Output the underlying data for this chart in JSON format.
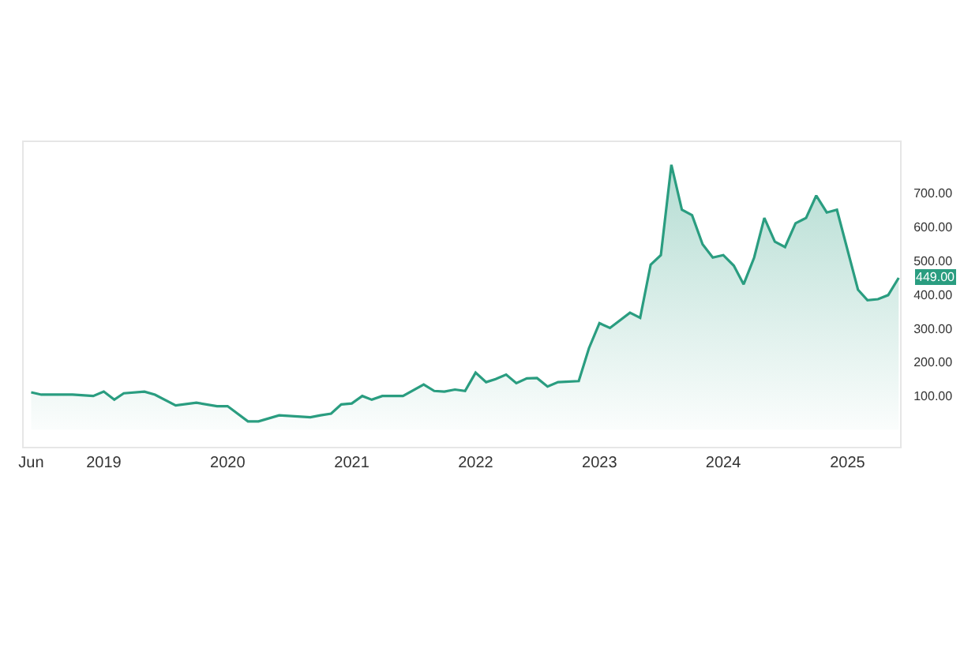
{
  "chart_data": {
    "type": "area",
    "x": [
      "2018-06",
      "2018-07",
      "2018-10",
      "2018-12",
      "2019-01",
      "2019-02",
      "2019-03",
      "2019-05",
      "2019-06",
      "2019-08",
      "2019-10",
      "2019-12",
      "2020-01",
      "2020-03",
      "2020-04",
      "2020-06",
      "2020-09",
      "2020-10",
      "2020-11",
      "2020-12",
      "2021-01",
      "2021-02",
      "2021-03",
      "2021-04",
      "2021-06",
      "2021-08",
      "2021-09",
      "2021-10",
      "2021-11",
      "2021-12",
      "2022-01",
      "2022-02",
      "2022-03",
      "2022-04",
      "2022-05",
      "2022-06",
      "2022-07",
      "2022-08",
      "2022-09",
      "2022-11",
      "2022-12",
      "2023-01",
      "2023-02",
      "2023-04",
      "2023-05",
      "2023-06",
      "2023-07",
      "2023-08",
      "2023-09",
      "2023-10",
      "2023-11",
      "2023-12",
      "2024-01",
      "2024-02",
      "2024-03",
      "2024-04",
      "2024-05",
      "2024-06",
      "2024-07",
      "2024-08",
      "2024-09",
      "2024-10",
      "2024-11",
      "2024-12",
      "2025-02",
      "2025-03",
      "2025-04",
      "2025-05",
      "2025-06"
    ],
    "series": [
      {
        "color": "#2a9d80",
        "values": [
          111,
          104,
          104,
          100,
          113,
          89,
          108,
          113,
          104,
          72,
          80,
          70,
          70,
          25,
          25,
          43,
          37,
          43,
          48,
          75,
          78,
          100,
          89,
          100,
          100,
          134,
          115,
          113,
          119,
          115,
          169,
          141,
          150,
          163,
          138,
          152,
          153,
          128,
          141,
          144,
          241,
          315,
          301,
          346,
          331,
          488,
          516,
          783,
          650,
          634,
          548,
          509,
          516,
          485,
          430,
          509,
          626,
          556,
          540,
          610,
          626,
          692,
          642,
          650,
          414,
          383,
          386,
          398,
          449
        ]
      }
    ],
    "xlim": [
      "2018-05-10",
      "2025-06-05"
    ],
    "xticks": [
      {
        "value": "2018-06",
        "label": "Jun"
      },
      {
        "value": "2019-01",
        "label": "2019"
      },
      {
        "value": "2020-01",
        "label": "2020"
      },
      {
        "value": "2021-01",
        "label": "2021"
      },
      {
        "value": "2022-01",
        "label": "2022"
      },
      {
        "value": "2023-01",
        "label": "2023"
      },
      {
        "value": "2024-01",
        "label": "2024"
      },
      {
        "value": "2025-01",
        "label": "2025"
      }
    ],
    "ylim": [
      -50,
      850
    ],
    "yticks": [
      {
        "value": 100,
        "label": "100.00"
      },
      {
        "value": 200,
        "label": "200.00"
      },
      {
        "value": 300,
        "label": "300.00"
      },
      {
        "value": 400,
        "label": "400.00"
      },
      {
        "value": 500,
        "label": "500.00"
      },
      {
        "value": 600,
        "label": "600.00"
      },
      {
        "value": 700,
        "label": "700.00"
      }
    ],
    "annotations": [
      {
        "text": "449.00",
        "x": "2025-06",
        "y": 449
      }
    ],
    "marker": "none",
    "line_style": "solid"
  }
}
